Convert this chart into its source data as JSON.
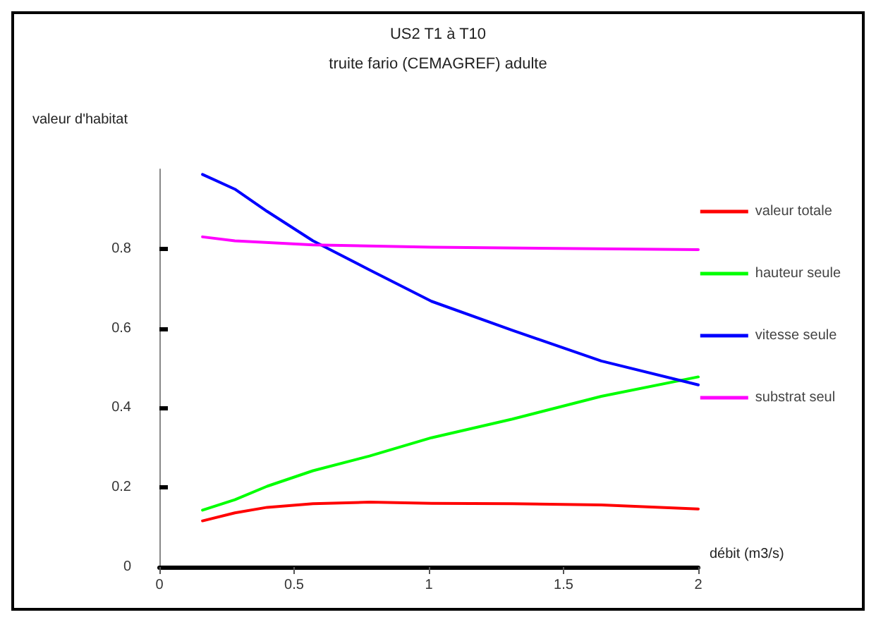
{
  "chart_data": {
    "type": "line",
    "title": "US2 T1 à T10",
    "subtitle": "truite fario (CEMAGREF) adulte",
    "xlabel": "débit (m3/s)",
    "ylabel": "valeur d'habitat",
    "xlim": [
      0,
      2
    ],
    "xticks": [
      0,
      0.5,
      1,
      1.5,
      2
    ],
    "ylim": [
      0,
      1
    ],
    "yticks": [
      0,
      0.2,
      0.4,
      0.6,
      0.8
    ],
    "grid": false,
    "legend": "right",
    "marker": "none",
    "line_style": "solid",
    "series": [
      {
        "name": "valeur totale",
        "color": "#ff0000",
        "x": [
          0.16,
          0.28,
          0.4,
          0.57,
          0.78,
          1.01,
          1.31,
          1.64,
          2.0
        ],
        "values": [
          0.116,
          0.136,
          0.15,
          0.159,
          0.163,
          0.16,
          0.159,
          0.156,
          0.146
        ]
      },
      {
        "name": "hauteur seule",
        "color": "#00ff00",
        "x": [
          0.16,
          0.28,
          0.4,
          0.57,
          0.78,
          1.01,
          1.31,
          1.64,
          2.0
        ],
        "values": [
          0.143,
          0.169,
          0.203,
          0.242,
          0.279,
          0.325,
          0.372,
          0.429,
          0.478
        ]
      },
      {
        "name": "vitesse seule",
        "color": "#0000ff",
        "x": [
          0.16,
          0.28,
          0.4,
          0.57,
          0.78,
          1.01,
          1.31,
          1.64,
          2.0
        ],
        "values": [
          0.987,
          0.95,
          0.894,
          0.82,
          0.747,
          0.668,
          0.595,
          0.518,
          0.458
        ]
      },
      {
        "name": "substrat seul",
        "color": "#ff00ff",
        "x": [
          0.16,
          0.28,
          0.57,
          1.01,
          2.0
        ],
        "values": [
          0.83,
          0.82,
          0.81,
          0.804,
          0.798
        ]
      }
    ]
  }
}
